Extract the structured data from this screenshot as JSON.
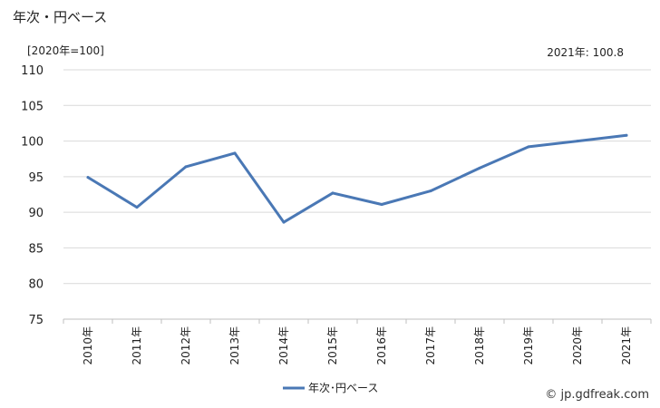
{
  "title": "年次・円ベース",
  "unit_note": "[2020年=100]",
  "latest_note": "2021年: 100.8",
  "credit": "© jp.gdfreak.com",
  "chart_data": {
    "type": "line",
    "categories": [
      "2010年",
      "2011年",
      "2012年",
      "2013年",
      "2014年",
      "2015年",
      "2016年",
      "2017年",
      "2018年",
      "2019年",
      "2020年",
      "2021年"
    ],
    "series": [
      {
        "name": "年次･円ベース",
        "values": [
          94.9,
          90.7,
          96.4,
          98.3,
          88.6,
          92.7,
          91.1,
          93.0,
          96.2,
          99.2,
          100.0,
          100.8
        ]
      }
    ],
    "yticks": [
      75,
      80,
      85,
      90,
      95,
      100,
      105,
      110
    ],
    "ylim": [
      75,
      110
    ],
    "grid": true,
    "legend_position": "bottom",
    "series_color": "#4a78b5",
    "grid_color": "#d9d9d9"
  }
}
